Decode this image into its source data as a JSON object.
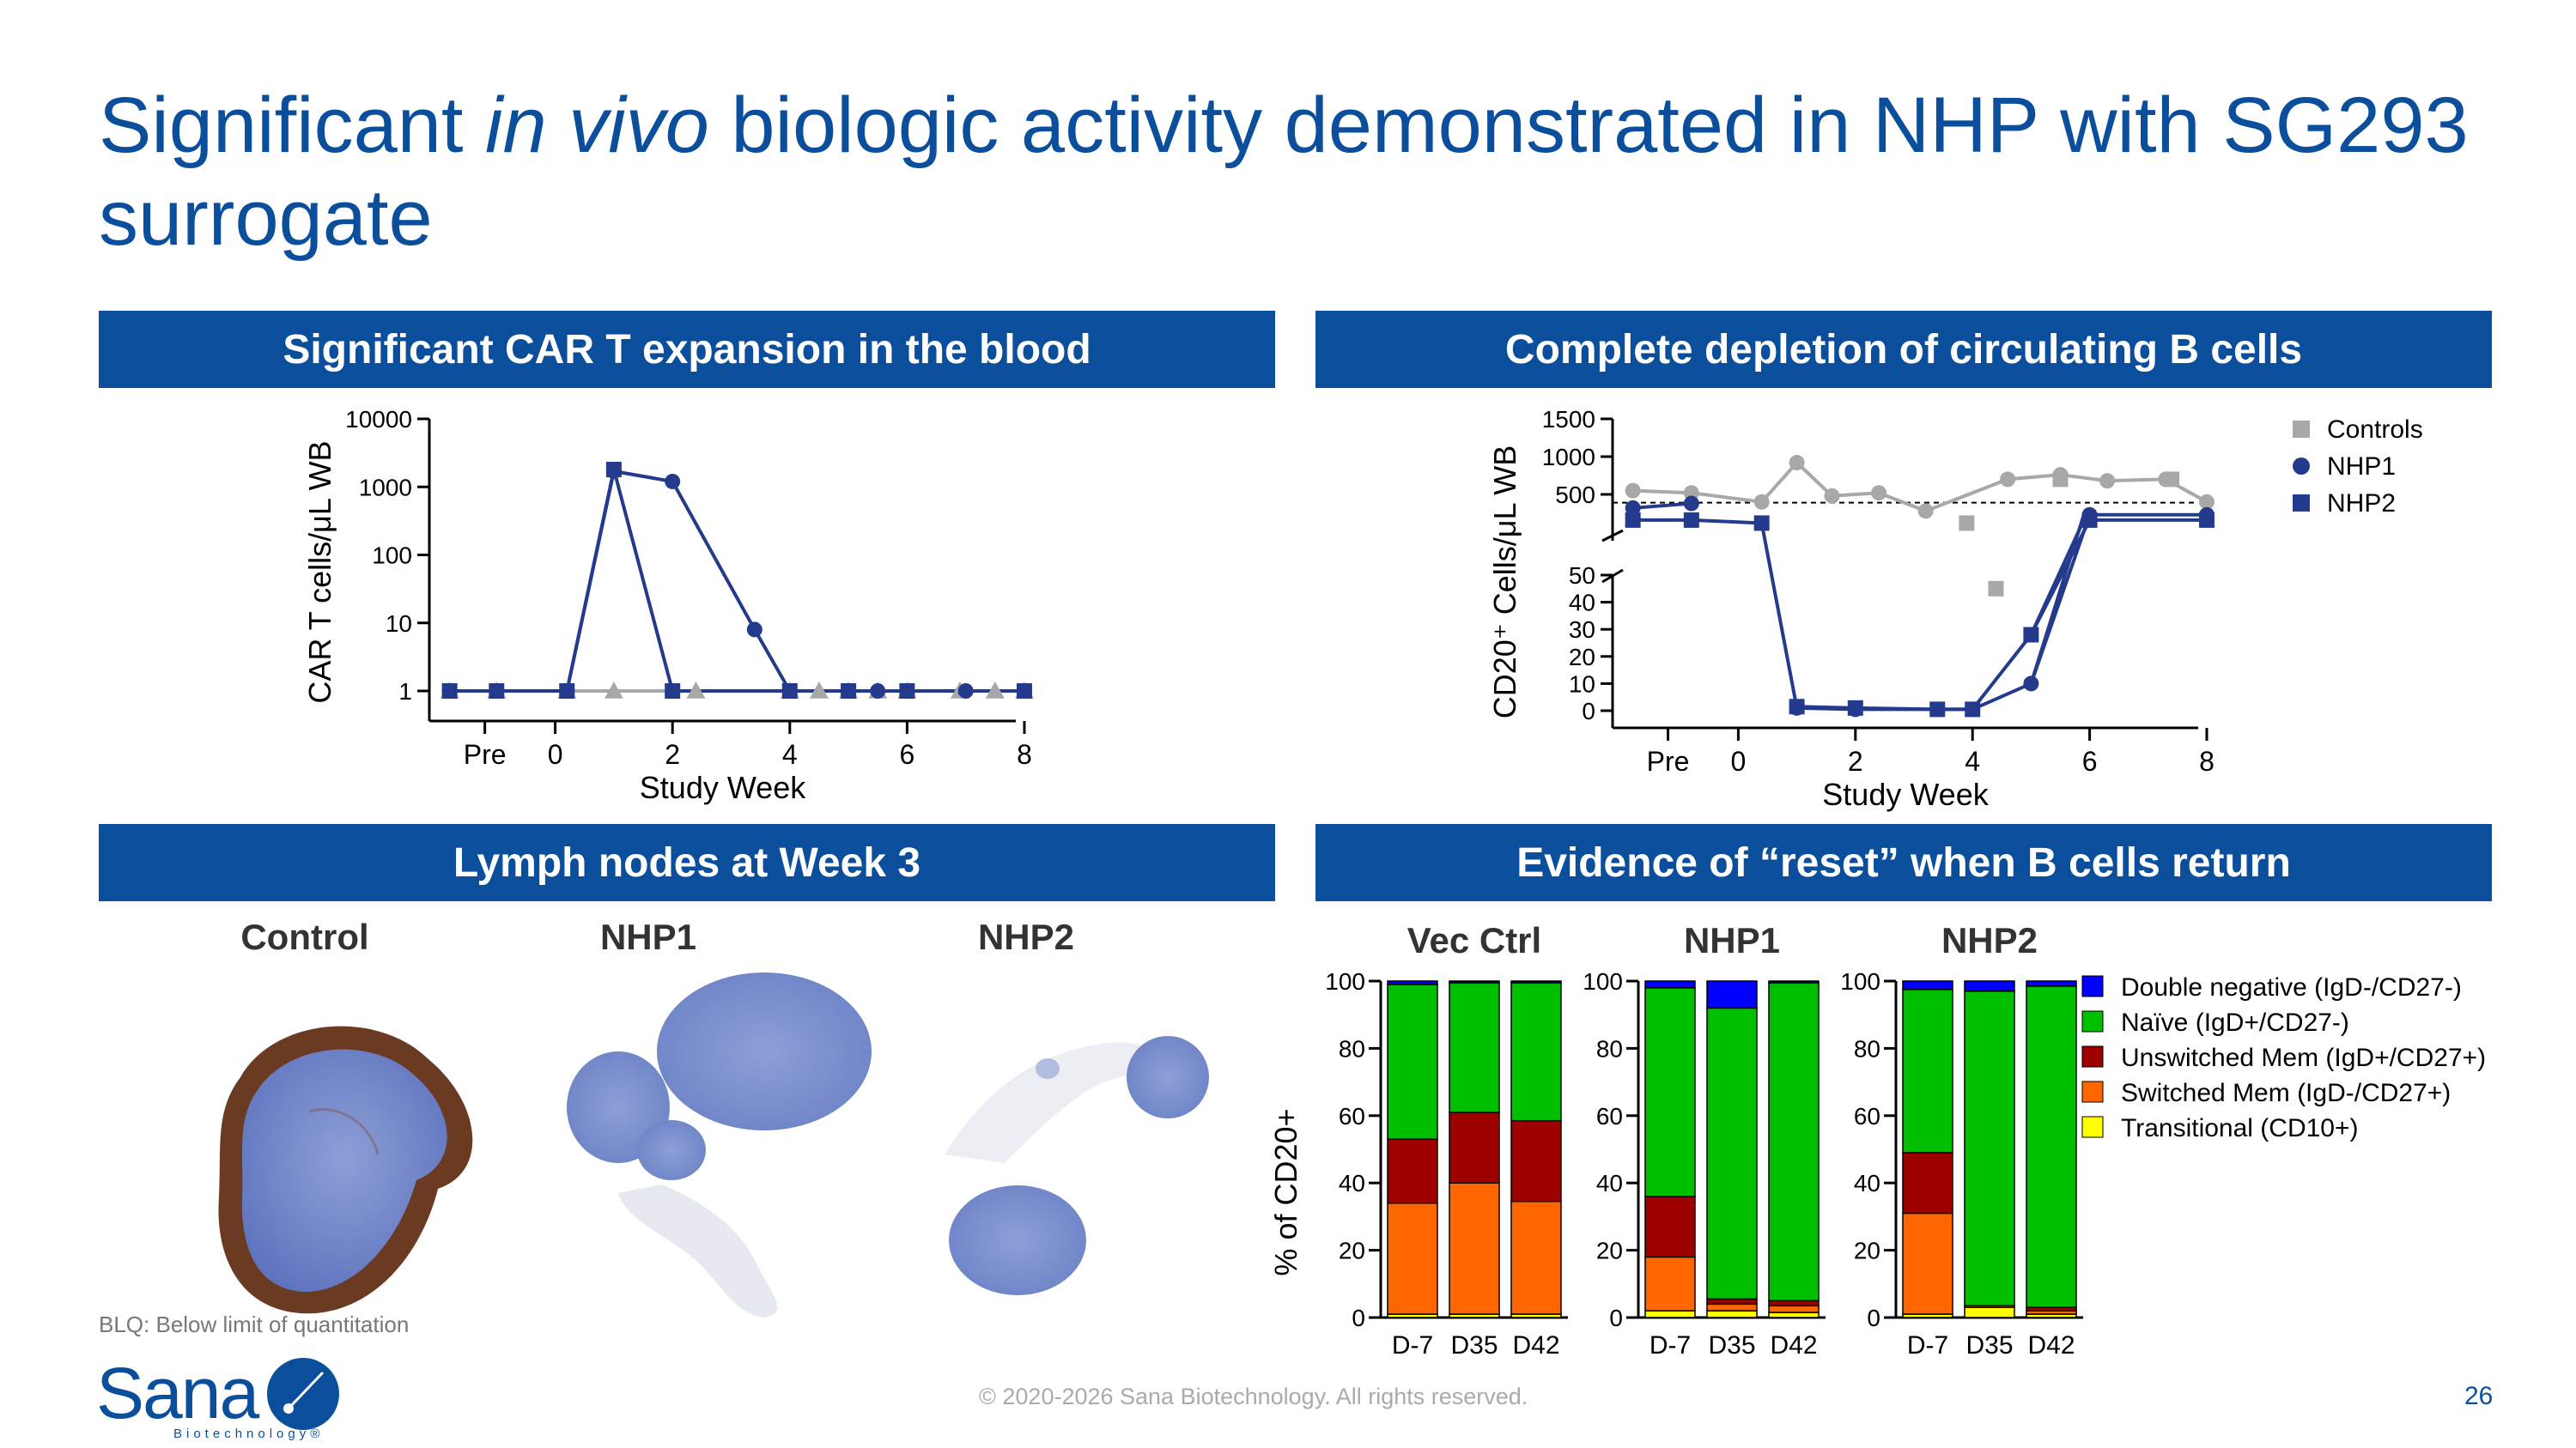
{
  "slide": {
    "title_pre": "Significant ",
    "title_italic": "in vivo",
    "title_post": " biologic activity demonstrated in NHP with SG293 surrogate",
    "banners": {
      "car_t": "Significant CAR T expansion in the blood",
      "b_cells": "Complete depletion of circulating B cells",
      "lymph": "Lymph nodes at Week 3",
      "reset": "Evidence of “reset” when B cells return"
    },
    "lymph_labels": [
      "Control",
      "NHP1",
      "NHP2"
    ],
    "footnote": "BLQ: Below limit of quantitation",
    "copyright": "© 2020-2026 Sana Biotechnology. All rights reserved.",
    "page_number": "26",
    "logo": {
      "name": "Sana",
      "sub": "Biotechnology®"
    }
  },
  "colors": {
    "brand_blue": "#0b4f9c",
    "nhp_navy": "#243a8c",
    "control_gray": "#a8a8a8",
    "double_negative": "#0000ff",
    "naive": "#00bf00",
    "unswitched": "#9e0000",
    "switched": "#ff6600",
    "transitional": "#ffff00"
  },
  "chart_data": [
    {
      "id": "car_t",
      "type": "line",
      "yscale": "log",
      "ylabel": "CAR T cells/μL WB",
      "xlabel": "Study Week",
      "yticks": [
        1,
        10,
        100,
        1000,
        10000
      ],
      "ytick_labels": [
        "1",
        "10",
        "100",
        "1000",
        "10000"
      ],
      "xticks": [
        -1.2,
        0,
        2,
        4,
        6,
        8
      ],
      "xtick_labels": [
        "Pre",
        "0",
        "2",
        "4",
        "6",
        "8"
      ],
      "xlim": [
        -2,
        8
      ],
      "series": [
        {
          "name": "Controls",
          "marker": "triangle",
          "x": [
            -1.8,
            -1,
            0.2,
            1,
            2.4,
            4,
            4.5,
            5,
            5.5,
            6,
            6.9,
            7.5,
            8
          ],
          "y": [
            1,
            1,
            1,
            1,
            1,
            1,
            1,
            1,
            1,
            1,
            1,
            1,
            1
          ]
        },
        {
          "name": "NHP1",
          "marker": "circle",
          "x": [
            -1.8,
            -1,
            0.2,
            1,
            2,
            3.4,
            4,
            5,
            5.5,
            6,
            7,
            8
          ],
          "y": [
            1,
            1,
            1,
            1700,
            1200,
            8,
            1,
            1,
            1,
            1,
            1,
            1
          ]
        },
        {
          "name": "NHP2",
          "marker": "square",
          "x": [
            -1.8,
            -1,
            0.2,
            1,
            2,
            4,
            5,
            6,
            8
          ],
          "y": [
            1,
            1,
            1,
            1800,
            1,
            1,
            1,
            1,
            1
          ]
        }
      ]
    },
    {
      "id": "b_cells",
      "type": "line",
      "yscale": "broken",
      "ylabel": "CD20⁺ Cells/μL WB",
      "xlabel": "Study Week",
      "yticks_upper": [
        500,
        1000,
        1500
      ],
      "yticks_lower": [
        0,
        10,
        20,
        30,
        40,
        50
      ],
      "xticks": [
        -1.2,
        0,
        2,
        4,
        6,
        8
      ],
      "xtick_labels": [
        "Pre",
        "0",
        "2",
        "4",
        "6",
        "8"
      ],
      "xlim": [
        -2,
        8
      ],
      "blq_line": 390,
      "legend": [
        "Controls",
        "NHP1",
        "NHP2"
      ],
      "series": [
        {
          "name": "Controls",
          "marker": "circle",
          "segments": [
            {
              "x": [
                -1.8,
                -0.8,
                0.4,
                1.0,
                1.6,
                2.4,
                3.2,
                4.6,
                5.5,
                6.3,
                7.3,
                8.0
              ],
              "y": [
                550,
                520,
                400,
                920,
                480,
                520,
                280,
                700,
                760,
                680,
                700,
                400
              ]
            }
          ],
          "extra_squares": {
            "x": [
              3.9,
              4.4,
              5.5,
              7.4
            ],
            "y": [
              120,
              45,
              700,
              700
            ]
          }
        },
        {
          "name": "NHP1",
          "marker": "circle",
          "segments": [
            {
              "x": [
                -1.8,
                -0.8
              ],
              "y": [
                320,
                380
              ]
            },
            {
              "x": [
                1.0,
                2.0,
                3.4,
                4.0,
                5.0,
                6.0,
                8.0
              ],
              "y": [
                1,
                0.5,
                0.5,
                0.5,
                10,
                230,
                230
              ]
            }
          ]
        },
        {
          "name": "NHP2",
          "marker": "square",
          "segments": [
            {
              "x": [
                -1.8,
                -0.8,
                0.4
              ],
              "y": [
                160,
                160,
                120
              ]
            },
            {
              "x": [
                1.0,
                2.0,
                3.4,
                4.0,
                5.0,
                6.0,
                8.0
              ],
              "y": [
                1.5,
                1,
                0.5,
                0.5,
                28,
                160,
                160
              ]
            }
          ]
        }
      ]
    },
    {
      "id": "reset",
      "type": "bar",
      "stacked": true,
      "ylabel": "% of CD20+",
      "ylim": [
        0,
        100
      ],
      "yticks": [
        0,
        20,
        40,
        60,
        80,
        100
      ],
      "stack_order": [
        "Transitional (CD10+)",
        "Switched Mem (IgD-/CD27+)",
        "Unswitched Mem (IgD+/CD27+)",
        "Naïve (IgD+/CD27-)",
        "Double negative (IgD-/CD27-)"
      ],
      "legend": [
        "Double negative (IgD-/CD27-)",
        "Naïve (IgD+/CD27-)",
        "Unswitched Mem (IgD+/CD27+)",
        "Switched Mem (IgD-/CD27+)",
        "Transitional (CD10+)"
      ],
      "groups": [
        {
          "name": "Vec Ctrl",
          "categories": [
            "D-7",
            "D35",
            "D42"
          ],
          "values": [
            [
              1,
              33,
              19,
              46,
              1
            ],
            [
              1,
              39,
              21,
              38.5,
              0.5
            ],
            [
              1,
              33.5,
              24,
              41,
              0.5
            ]
          ]
        },
        {
          "name": "NHP1",
          "categories": [
            "D-7",
            "D35",
            "D42"
          ],
          "values": [
            [
              2,
              16,
              18,
              62,
              2
            ],
            [
              2,
              2,
              1.5,
              86.5,
              8
            ],
            [
              1.5,
              2,
              1.5,
              94.5,
              0.5
            ]
          ]
        },
        {
          "name": "NHP2",
          "categories": [
            "D-7",
            "D35",
            "D42"
          ],
          "values": [
            [
              1,
              30,
              18,
              48.5,
              2.5
            ],
            [
              3,
              0.5,
              0,
              93.5,
              3
            ],
            [
              1,
              1,
              1,
              95.5,
              1.5
            ]
          ]
        }
      ]
    }
  ]
}
